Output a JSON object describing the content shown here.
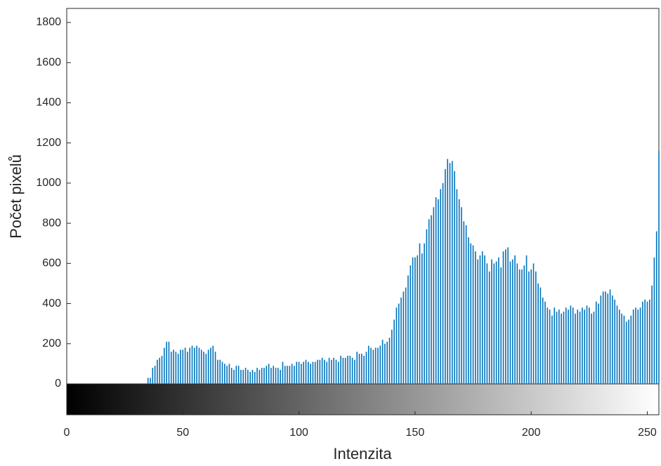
{
  "chart_data": {
    "type": "stem-histogram",
    "xlabel": "Intenzita",
    "ylabel": "Počet pixelů",
    "color": "#0072BD",
    "xlim": [
      0,
      255
    ],
    "ylim": [
      0,
      1870
    ],
    "xticks": [
      0,
      50,
      100,
      150,
      200,
      250
    ],
    "yticks": [
      0,
      200,
      400,
      600,
      800,
      1000,
      1200,
      1400,
      1600,
      1800
    ],
    "x": [
      0,
      1,
      2,
      3,
      4,
      5,
      6,
      7,
      8,
      9,
      10,
      11,
      12,
      13,
      14,
      15,
      16,
      17,
      18,
      19,
      20,
      21,
      22,
      23,
      24,
      25,
      26,
      27,
      28,
      29,
      30,
      31,
      32,
      33,
      34,
      35,
      36,
      37,
      38,
      39,
      40,
      41,
      42,
      43,
      44,
      45,
      46,
      47,
      48,
      49,
      50,
      51,
      52,
      53,
      54,
      55,
      56,
      57,
      58,
      59,
      60,
      61,
      62,
      63,
      64,
      65,
      66,
      67,
      68,
      69,
      70,
      71,
      72,
      73,
      74,
      75,
      76,
      77,
      78,
      79,
      80,
      81,
      82,
      83,
      84,
      85,
      86,
      87,
      88,
      89,
      90,
      91,
      92,
      93,
      94,
      95,
      96,
      97,
      98,
      99,
      100,
      101,
      102,
      103,
      104,
      105,
      106,
      107,
      108,
      109,
      110,
      111,
      112,
      113,
      114,
      115,
      116,
      117,
      118,
      119,
      120,
      121,
      122,
      123,
      124,
      125,
      126,
      127,
      128,
      129,
      130,
      131,
      132,
      133,
      134,
      135,
      136,
      137,
      138,
      139,
      140,
      141,
      142,
      143,
      144,
      145,
      146,
      147,
      148,
      149,
      150,
      151,
      152,
      153,
      154,
      155,
      156,
      157,
      158,
      159,
      160,
      161,
      162,
      163,
      164,
      165,
      166,
      167,
      168,
      169,
      170,
      171,
      172,
      173,
      174,
      175,
      176,
      177,
      178,
      179,
      180,
      181,
      182,
      183,
      184,
      185,
      186,
      187,
      188,
      189,
      190,
      191,
      192,
      193,
      194,
      195,
      196,
      197,
      198,
      199,
      200,
      201,
      202,
      203,
      204,
      205,
      206,
      207,
      208,
      209,
      210,
      211,
      212,
      213,
      214,
      215,
      216,
      217,
      218,
      219,
      220,
      221,
      222,
      223,
      224,
      225,
      226,
      227,
      228,
      229,
      230,
      231,
      232,
      233,
      234,
      235,
      236,
      237,
      238,
      239,
      240,
      241,
      242,
      243,
      244,
      245,
      246,
      247,
      248,
      249,
      250,
      251,
      252,
      253,
      254,
      255
    ],
    "values": [
      0,
      0,
      0,
      0,
      0,
      0,
      0,
      0,
      0,
      0,
      0,
      0,
      0,
      0,
      0,
      0,
      0,
      0,
      0,
      0,
      0,
      0,
      0,
      0,
      0,
      0,
      0,
      0,
      0,
      0,
      0,
      0,
      0,
      0,
      0,
      30,
      30,
      80,
      90,
      120,
      130,
      140,
      180,
      210,
      210,
      160,
      170,
      160,
      150,
      170,
      170,
      180,
      160,
      180,
      190,
      180,
      190,
      180,
      170,
      160,
      150,
      170,
      180,
      190,
      160,
      120,
      120,
      110,
      100,
      90,
      100,
      80,
      70,
      90,
      90,
      70,
      70,
      80,
      70,
      60,
      70,
      60,
      80,
      70,
      80,
      80,
      90,
      100,
      80,
      90,
      80,
      80,
      70,
      110,
      90,
      90,
      90,
      100,
      90,
      110,
      110,
      100,
      110,
      120,
      110,
      100,
      110,
      110,
      120,
      120,
      130,
      120,
      110,
      130,
      120,
      130,
      120,
      110,
      140,
      130,
      130,
      140,
      140,
      130,
      120,
      160,
      150,
      150,
      140,
      160,
      190,
      180,
      170,
      180,
      180,
      190,
      220,
      200,
      210,
      230,
      270,
      320,
      380,
      400,
      430,
      460,
      480,
      540,
      590,
      630,
      630,
      640,
      700,
      650,
      700,
      770,
      820,
      840,
      880,
      930,
      920,
      970,
      1000,
      1070,
      1120,
      1100,
      1110,
      1060,
      970,
      920,
      880,
      810,
      790,
      730,
      700,
      690,
      660,
      620,
      640,
      660,
      640,
      600,
      560,
      620,
      600,
      610,
      630,
      580,
      660,
      670,
      680,
      610,
      620,
      640,
      600,
      570,
      570,
      590,
      640,
      560,
      570,
      600,
      560,
      500,
      480,
      430,
      410,
      380,
      370,
      340,
      380,
      360,
      370,
      350,
      360,
      380,
      370,
      390,
      380,
      350,
      370,
      360,
      380,
      370,
      390,
      380,
      350,
      360,
      410,
      400,
      440,
      460,
      460,
      450,
      470,
      440,
      420,
      390,
      370,
      350,
      340,
      310,
      320,
      340,
      370,
      380,
      370,
      380,
      410,
      420,
      410,
      420,
      490,
      630,
      760,
      1160
    ]
  }
}
